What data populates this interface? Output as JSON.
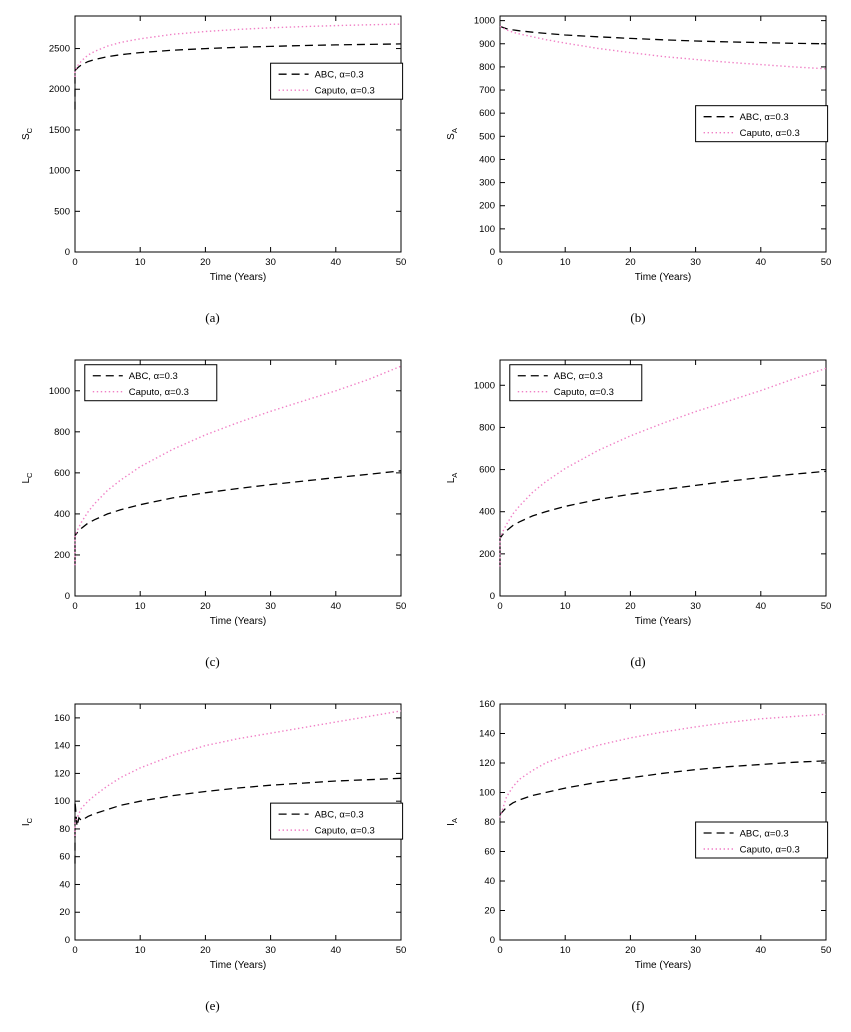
{
  "chart_data": [
    {
      "id": "a",
      "type": "line",
      "caption": "(a)",
      "xlabel": "Time (Years)",
      "ylabel": {
        "base": "S",
        "sub": "C"
      },
      "xlim": [
        0,
        50
      ],
      "ylim": [
        0,
        2900
      ],
      "xticks": [
        0,
        10,
        20,
        30,
        40,
        50
      ],
      "yticks": [
        0,
        500,
        1000,
        1500,
        2000,
        2500
      ],
      "legend": {
        "x": 0.6,
        "y": 0.2
      },
      "series": [
        {
          "name": "ABC, α=0.3",
          "style": "dashed",
          "color": "#000000",
          "x": [
            0,
            0,
            0.5,
            1,
            2,
            3,
            5,
            7,
            10,
            15,
            20,
            25,
            30,
            35,
            40,
            45,
            50
          ],
          "y": [
            1750,
            2230,
            2270,
            2300,
            2340,
            2365,
            2400,
            2425,
            2450,
            2480,
            2500,
            2515,
            2527,
            2537,
            2545,
            2551,
            2557
          ]
        },
        {
          "name": "Caputo, α=0.3",
          "style": "dotted",
          "color": "#f07fc5",
          "x": [
            0,
            0,
            0.5,
            1,
            2,
            3,
            5,
            7,
            10,
            15,
            20,
            25,
            30,
            35,
            40,
            45,
            50
          ],
          "y": [
            2150,
            2230,
            2300,
            2350,
            2420,
            2465,
            2530,
            2575,
            2620,
            2675,
            2710,
            2735,
            2755,
            2770,
            2782,
            2792,
            2800
          ]
        }
      ]
    },
    {
      "id": "b",
      "type": "line",
      "caption": "(b)",
      "xlabel": "Time (Years)",
      "ylabel": {
        "base": "S",
        "sub": "A"
      },
      "xlim": [
        0,
        50
      ],
      "ylim": [
        0,
        1020
      ],
      "xticks": [
        0,
        10,
        20,
        30,
        40,
        50
      ],
      "yticks": [
        0,
        100,
        200,
        300,
        400,
        500,
        600,
        700,
        800,
        900,
        1000
      ],
      "legend": {
        "x": 0.6,
        "y": 0.38
      },
      "series": [
        {
          "name": "ABC, α=0.3",
          "style": "dashed",
          "color": "#000000",
          "x": [
            0,
            1,
            2,
            3,
            5,
            7,
            10,
            15,
            20,
            25,
            30,
            35,
            40,
            45,
            50
          ],
          "y": [
            975,
            965,
            960,
            956,
            950,
            945,
            938,
            930,
            923,
            917,
            912,
            908,
            905,
            902,
            900
          ]
        },
        {
          "name": "Caputo, α=0.3",
          "style": "dotted",
          "color": "#f07fc5",
          "x": [
            0,
            1,
            2,
            3,
            5,
            7,
            10,
            15,
            20,
            25,
            30,
            35,
            40,
            45,
            50
          ],
          "y": [
            975,
            960,
            950,
            942,
            930,
            918,
            903,
            880,
            862,
            845,
            832,
            820,
            810,
            800,
            792
          ]
        }
      ]
    },
    {
      "id": "c",
      "type": "line",
      "caption": "(c)",
      "xlabel": "Time (Years)",
      "ylabel": {
        "base": "L",
        "sub": "C"
      },
      "xlim": [
        0,
        50
      ],
      "ylim": [
        0,
        1150
      ],
      "xticks": [
        0,
        10,
        20,
        30,
        40,
        50
      ],
      "yticks": [
        0,
        200,
        400,
        600,
        800,
        1000
      ],
      "legend": {
        "x": 0.03,
        "y": 0.02
      },
      "series": [
        {
          "name": "ABC, α=0.3",
          "style": "dashed",
          "color": "#000000",
          "x": [
            0,
            0,
            0.5,
            1,
            2,
            3,
            5,
            7,
            10,
            15,
            20,
            25,
            30,
            35,
            40,
            45,
            50
          ],
          "y": [
            150,
            295,
            315,
            330,
            355,
            372,
            400,
            420,
            445,
            478,
            503,
            524,
            543,
            560,
            577,
            593,
            610
          ]
        },
        {
          "name": "Caputo, α=0.3",
          "style": "dotted",
          "color": "#f07fc5",
          "x": [
            0,
            0,
            0.5,
            1,
            2,
            3,
            5,
            7,
            10,
            15,
            20,
            25,
            30,
            35,
            40,
            45,
            50
          ],
          "y": [
            150,
            295,
            330,
            360,
            410,
            450,
            515,
            565,
            630,
            715,
            785,
            845,
            900,
            950,
            1000,
            1055,
            1120
          ]
        }
      ]
    },
    {
      "id": "d",
      "type": "line",
      "caption": "(d)",
      "xlabel": "Time (Years)",
      "ylabel": {
        "base": "L",
        "sub": "A"
      },
      "xlim": [
        0,
        50
      ],
      "ylim": [
        0,
        1120
      ],
      "xticks": [
        0,
        10,
        20,
        30,
        40,
        50
      ],
      "yticks": [
        0,
        200,
        400,
        600,
        800,
        1000
      ],
      "legend": {
        "x": 0.03,
        "y": 0.02
      },
      "series": [
        {
          "name": "ABC, α=0.3",
          "style": "dashed",
          "color": "#000000",
          "x": [
            0,
            0,
            0.5,
            1,
            2,
            3,
            5,
            7,
            10,
            15,
            20,
            25,
            30,
            35,
            40,
            45,
            50
          ],
          "y": [
            140,
            275,
            295,
            310,
            335,
            352,
            380,
            400,
            425,
            458,
            483,
            505,
            525,
            545,
            562,
            578,
            592
          ]
        },
        {
          "name": "Caputo, α=0.3",
          "style": "dotted",
          "color": "#f07fc5",
          "x": [
            0,
            0,
            0.5,
            1,
            2,
            3,
            5,
            7,
            10,
            15,
            20,
            25,
            30,
            35,
            40,
            45,
            50
          ],
          "y": [
            140,
            275,
            310,
            340,
            390,
            428,
            492,
            542,
            605,
            690,
            760,
            820,
            875,
            925,
            975,
            1030,
            1080
          ]
        }
      ]
    },
    {
      "id": "e",
      "type": "line",
      "caption": "(e)",
      "xlabel": "Time (Years)",
      "ylabel": {
        "base": "I",
        "sub": "C"
      },
      "xlim": [
        0,
        50
      ],
      "ylim": [
        0,
        170
      ],
      "xticks": [
        0,
        10,
        20,
        30,
        40,
        50
      ],
      "yticks": [
        0,
        20,
        40,
        60,
        80,
        100,
        120,
        140,
        160
      ],
      "legend": {
        "x": 0.6,
        "y": 0.42
      },
      "series": [
        {
          "name": "ABC, α=0.3",
          "style": "dashed",
          "color": "#000000",
          "x": [
            0,
            0,
            0.3,
            0.6,
            1,
            2,
            3,
            5,
            7,
            10,
            15,
            20,
            25,
            30,
            35,
            40,
            45,
            50
          ],
          "y": [
            55,
            100,
            82,
            88,
            86,
            89,
            91,
            94,
            97,
            100,
            104,
            107,
            109.5,
            111.5,
            113,
            114.5,
            115.5,
            116.5
          ]
        },
        {
          "name": "Caputo, α=0.3",
          "style": "dotted",
          "color": "#f07fc5",
          "x": [
            0,
            0,
            0.3,
            0.6,
            1,
            2,
            3,
            5,
            7,
            10,
            15,
            20,
            25,
            30,
            35,
            40,
            45,
            50
          ],
          "y": [
            75,
            85,
            88,
            91,
            95,
            100,
            104,
            111,
            117,
            124,
            133,
            140,
            145,
            149,
            153,
            157,
            161,
            165
          ]
        }
      ]
    },
    {
      "id": "f",
      "type": "line",
      "caption": "(f)",
      "xlabel": "Time (Years)",
      "ylabel": {
        "base": "I",
        "sub": "A"
      },
      "xlim": [
        0,
        50
      ],
      "ylim": [
        0,
        160
      ],
      "xticks": [
        0,
        10,
        20,
        30,
        40,
        50
      ],
      "yticks": [
        0,
        20,
        40,
        60,
        80,
        100,
        120,
        140,
        160
      ],
      "legend": {
        "x": 0.6,
        "y": 0.5
      },
      "series": [
        {
          "name": "ABC, α=0.3",
          "style": "dashed",
          "color": "#000000",
          "x": [
            0,
            1,
            2,
            3,
            5,
            7,
            10,
            15,
            20,
            25,
            30,
            35,
            40,
            45,
            50
          ],
          "y": [
            85,
            90,
            93,
            95,
            98,
            100,
            103,
            107,
            110,
            113,
            115.5,
            117.5,
            119,
            120.5,
            121.5
          ]
        },
        {
          "name": "Caputo, α=0.3",
          "style": "dotted",
          "color": "#f07fc5",
          "x": [
            0,
            1,
            2,
            3,
            5,
            7,
            10,
            15,
            20,
            25,
            30,
            35,
            40,
            45,
            50
          ],
          "y": [
            83,
            97,
            104,
            109,
            115,
            120,
            125,
            132,
            137,
            141,
            144.5,
            147.5,
            150,
            151.5,
            153
          ]
        }
      ]
    }
  ]
}
